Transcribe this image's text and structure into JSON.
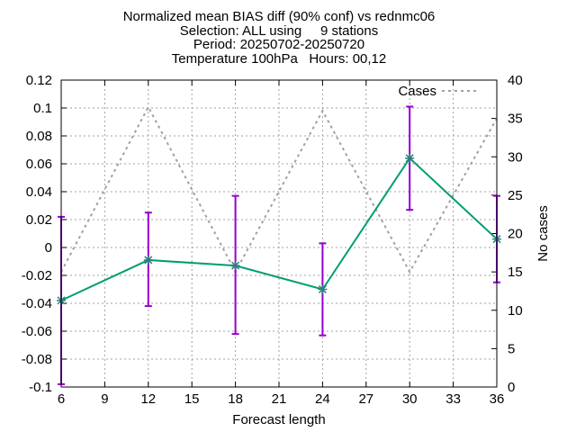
{
  "chart_data": {
    "type": "line",
    "title_lines": [
      "Normalized mean BIAS diff (90% conf) vs rednmc06",
      "Selection: ALL using     9 stations",
      "Period: 20250702-20250720",
      "Temperature 100hPa   Hours: 00,12"
    ],
    "xlabel": "Forecast length",
    "ylabel": "",
    "y2label": "No cases",
    "xlim": [
      6,
      36
    ],
    "ylim": [
      -0.1,
      0.12
    ],
    "y2lim": [
      0,
      40
    ],
    "x_ticks": [
      "6",
      "9",
      "12",
      "15",
      "18",
      "21",
      "24",
      "27",
      "30",
      "33",
      "36"
    ],
    "y_ticks": [
      "-0.1",
      "-0.08",
      "-0.06",
      "-0.04",
      "-0.02",
      "0",
      "0.02",
      "0.04",
      "0.06",
      "0.08",
      "0.1",
      "0.12"
    ],
    "y2_ticks": [
      "0",
      "5",
      "10",
      "15",
      "20",
      "25",
      "30",
      "35",
      "40"
    ],
    "grid": true,
    "legend_position": "top-right",
    "series": [
      {
        "x": [
          6,
          12,
          18,
          24,
          30,
          36
        ],
        "values": [
          -0.038,
          -0.009,
          -0.013,
          -0.03,
          0.064,
          0.006
        ],
        "err_low": [
          -0.098,
          -0.042,
          -0.062,
          -0.063,
          0.027,
          -0.025
        ],
        "err_high": [
          0.022,
          0.025,
          0.037,
          0.003,
          0.101,
          0.037
        ],
        "color": "#009e73",
        "error_color": "#9400d3",
        "axis": "y"
      },
      {
        "name": "Cases",
        "x": [
          6,
          12,
          18,
          24,
          30,
          36
        ],
        "values": [
          15,
          36.5,
          15,
          36,
          15,
          35
        ],
        "color": "#a0a0a0",
        "dash": true,
        "axis": "y2"
      }
    ]
  }
}
